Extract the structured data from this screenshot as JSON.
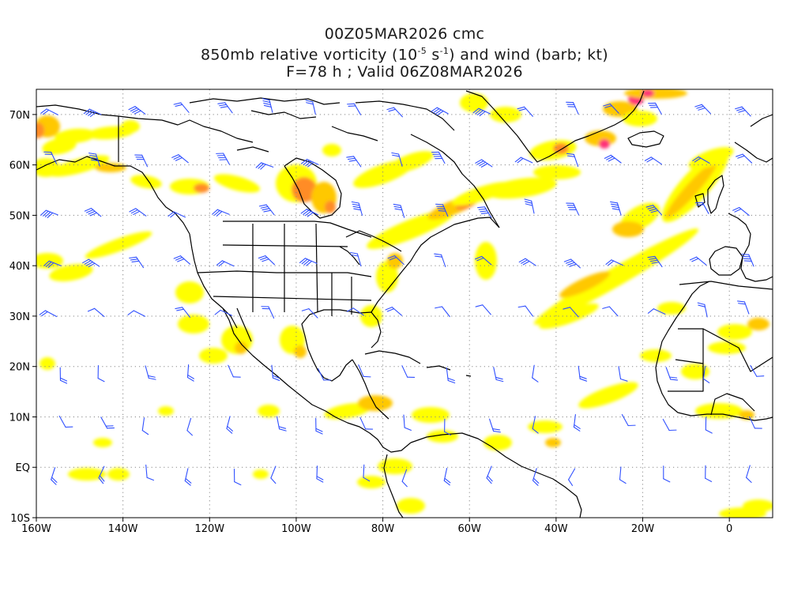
{
  "title": {
    "line1": "00Z05MAR2026 cmc",
    "line2_pre": "850mb relative vorticity (10",
    "line2_exp1": "-5",
    "line2_mid": " s",
    "line2_exp2": "-1",
    "line2_post": ") and wind (barb; kt)",
    "line3": "F=78 h ; Valid 06Z08MAR2026"
  },
  "map": {
    "lon_range": [
      -160,
      10
    ],
    "lat_range": [
      -10,
      75
    ],
    "grid": "dotted",
    "x_ticks": [
      "160W",
      "140W",
      "120W",
      "100W",
      "80W",
      "60W",
      "40W",
      "20W",
      "0"
    ],
    "y_ticks": [
      "70N",
      "60N",
      "50N",
      "40N",
      "30N",
      "20N",
      "10N",
      "EQ",
      "10S"
    ],
    "colors": {
      "vorticity_low": "#ffff00",
      "vorticity_mid": "#ffc800",
      "vorticity_high": "#ff8c28",
      "vorticity_max": "#ff3278",
      "wind_barb": "#3050ff",
      "coastline": "#000000"
    }
  }
}
